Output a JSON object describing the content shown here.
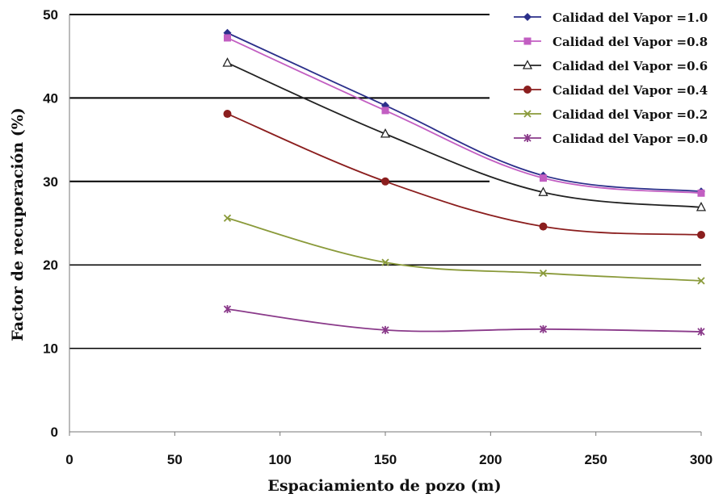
{
  "chart_data": {
    "type": "line",
    "xlabel": "Espaciamiento de pozo (m)",
    "ylabel": "Factor de recuperación (%)",
    "xlim": [
      0,
      300
    ],
    "ylim": [
      0,
      50
    ],
    "xticks": [
      0,
      50,
      100,
      150,
      200,
      250,
      300
    ],
    "yticks": [
      0,
      10,
      20,
      30,
      40,
      50
    ],
    "grid": "horizontal",
    "legend": "top-right",
    "x": [
      75,
      150,
      225,
      300
    ],
    "series": [
      {
        "name": "Calidad del Vapor =1.0",
        "values": [
          47.8,
          39.1,
          30.7,
          28.8
        ],
        "color": "#2b2f8a",
        "marker": "diamond"
      },
      {
        "name": "Calidad del Vapor =0.8",
        "values": [
          47.2,
          38.5,
          30.4,
          28.6
        ],
        "color": "#c25ec2",
        "marker": "square"
      },
      {
        "name": "Calidad del Vapor =0.6",
        "values": [
          44.2,
          35.7,
          28.7,
          26.9
        ],
        "color": "#222222",
        "marker": "triangle"
      },
      {
        "name": "Calidad del Vapor =0.4",
        "values": [
          38.1,
          30.0,
          24.6,
          23.6
        ],
        "color": "#8b1e1e",
        "marker": "circle"
      },
      {
        "name": "Calidad del Vapor =0.2",
        "values": [
          25.6,
          20.3,
          19.0,
          18.1
        ],
        "color": "#8a9a3a",
        "marker": "x"
      },
      {
        "name": "Calidad del Vapor =0.0",
        "values": [
          14.7,
          12.2,
          12.3,
          12.0
        ],
        "color": "#8a3a8a",
        "marker": "star"
      }
    ]
  }
}
